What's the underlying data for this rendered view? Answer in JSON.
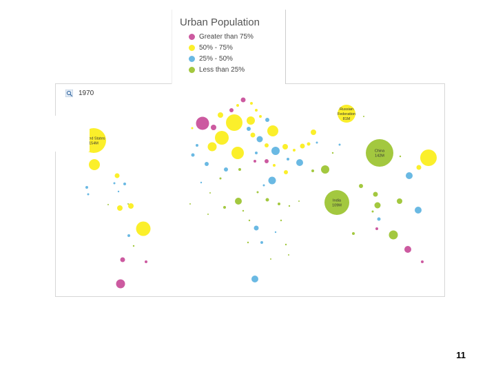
{
  "chart_data": {
    "type": "bubble-map",
    "title": "Urban Population",
    "year": "1970",
    "legend": [
      {
        "label": "Greater than 75%",
        "category": "gt75",
        "color": "#cc5aa0"
      },
      {
        "label": "50% - 75%",
        "category": "50to75",
        "color": "#fbef2b"
      },
      {
        "label": "25% - 50%",
        "category": "25to50",
        "color": "#6ab9e3"
      },
      {
        "label": "Less than 25%",
        "category": "lt25",
        "color": "#a3c83f"
      }
    ],
    "labeled_bubbles": [
      {
        "name": "United States",
        "value": "154M",
        "category": "50to75"
      },
      {
        "name": "Russian Federation",
        "value": "81M",
        "category": "50to75"
      },
      {
        "name": "China",
        "value": "142M",
        "category": "lt25"
      },
      {
        "name": "India",
        "value": "109M",
        "category": "lt25"
      }
    ]
  },
  "page_number": "11"
}
